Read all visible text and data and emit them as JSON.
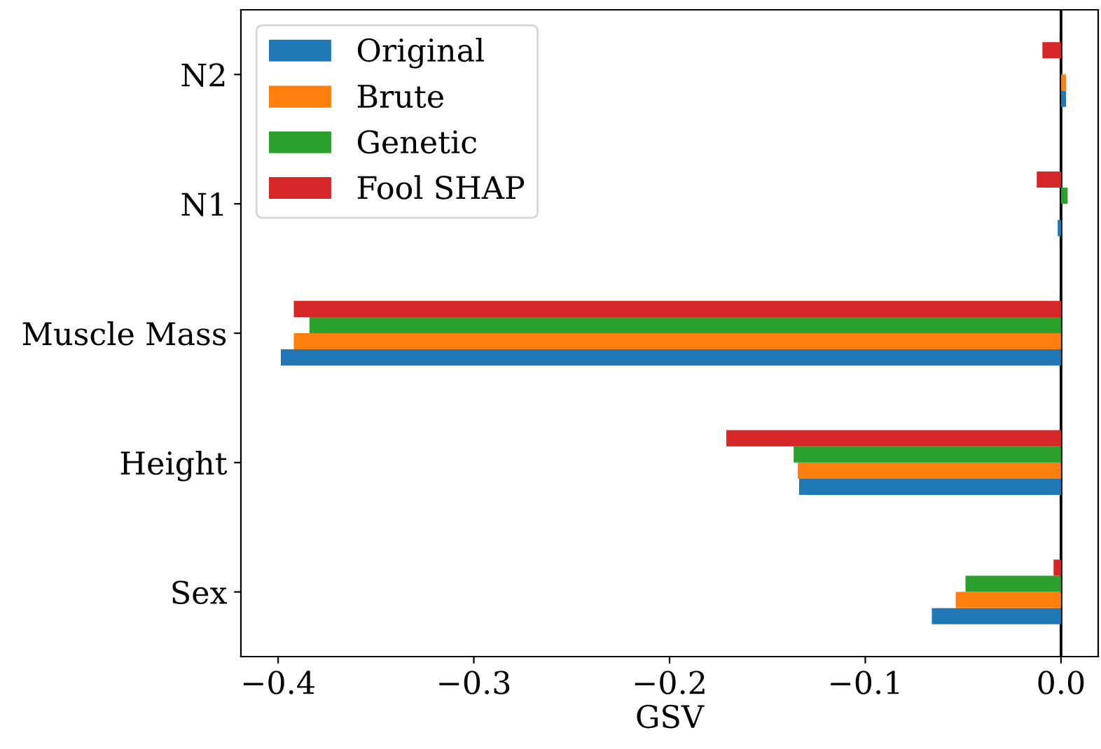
{
  "chart_data": {
    "type": "bar",
    "orientation": "horizontal",
    "xlabel": "GSV",
    "categories": [
      "N2",
      "N1",
      "Muscle Mass",
      "Height",
      "Sex"
    ],
    "series": [
      {
        "name": "Original",
        "color": "#1f77b4",
        "values": [
          0.0026,
          -0.0017,
          -0.3986,
          -0.1338,
          -0.066
        ]
      },
      {
        "name": "Brute",
        "color": "#ff7f0e",
        "values": [
          0.0026,
          null,
          -0.392,
          -0.1345,
          -0.0538
        ]
      },
      {
        "name": "Genetic",
        "color": "#2ca02c",
        "values": [
          0.0,
          0.0034,
          -0.384,
          -0.1366,
          -0.0488
        ]
      },
      {
        "name": "Fool SHAP",
        "color": "#d62728",
        "values": [
          -0.0095,
          -0.0124,
          -0.392,
          -0.171,
          -0.0038
        ]
      }
    ],
    "xlim": [
      -0.419,
      0.019
    ],
    "xticks": [
      {
        "value": -0.4,
        "label": "−0.4"
      },
      {
        "value": -0.3,
        "label": "−0.3"
      },
      {
        "value": -0.2,
        "label": "−0.2"
      },
      {
        "value": -0.1,
        "label": "−0.1"
      },
      {
        "value": 0.0,
        "label": "0.0"
      }
    ],
    "ref_lines": [
      {
        "axis": "x",
        "value": 0,
        "color": "#000000"
      }
    ],
    "legend": "top left",
    "grid": false
  }
}
